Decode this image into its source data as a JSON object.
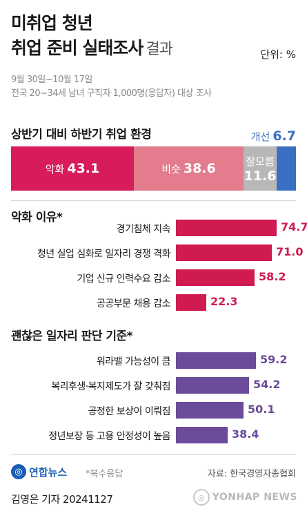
{
  "title": {
    "line1": "미취업 청년",
    "line2": "취업 준비 실태조사",
    "line2_suffix": "결과"
  },
  "unit": "단위: %",
  "subtitle": {
    "line1": "9월 30일~10월 17일",
    "line2": "전국 20~34세 남녀 구직자 1,000명(응답자) 대상 조사"
  },
  "colors": {
    "bad": "#d81b5a",
    "same": "#e37c8d",
    "unknown": "#b8b8b8",
    "better": "#3b6fc4",
    "crimson": "#cf1b50",
    "purple": "#6b4c9a"
  },
  "chart_data": [
    {
      "type": "bar",
      "stacked": true,
      "title": "상반기 대비 하반기 취업 환경",
      "categories": [
        "악화",
        "비슷",
        "잘모름",
        "개선"
      ],
      "values": [
        43.1,
        38.6,
        11.6,
        6.7
      ],
      "labels": [
        "악화",
        "비슷",
        "잘모름",
        "개선"
      ]
    },
    {
      "type": "bar",
      "orientation": "horizontal",
      "title": "악화 이유*",
      "categories": [
        "경기침체 지속",
        "청년 실업 심화로 일자리 경쟁 격화",
        "기업 신규 인력수요 감소",
        "공공부문 채용 감소"
      ],
      "values": [
        74.7,
        71.0,
        58.2,
        22.3
      ],
      "value_labels": [
        "74.7",
        "71.0",
        "58.2",
        "22.3"
      ]
    },
    {
      "type": "bar",
      "orientation": "horizontal",
      "title": "괜찮은 일자리 판단 기준*",
      "categories": [
        "워라밸 가능성이 큼",
        "복리후생·복지제도가 잘 갖춰짐",
        "공정한 보상이 이뤄짐",
        "정년보장 등 고용 안정성이 높음"
      ],
      "values": [
        59.2,
        54.2,
        50.1,
        38.4
      ],
      "value_labels": [
        "59.2",
        "54.2",
        "50.1",
        "38.4"
      ]
    }
  ],
  "footer": {
    "logo": "연합뉴스",
    "note": "*복수응답",
    "source": "자료: 한국경영자총협회",
    "credit": "김영은 기자  20241127",
    "watermark": "YONHAP NEWS"
  }
}
